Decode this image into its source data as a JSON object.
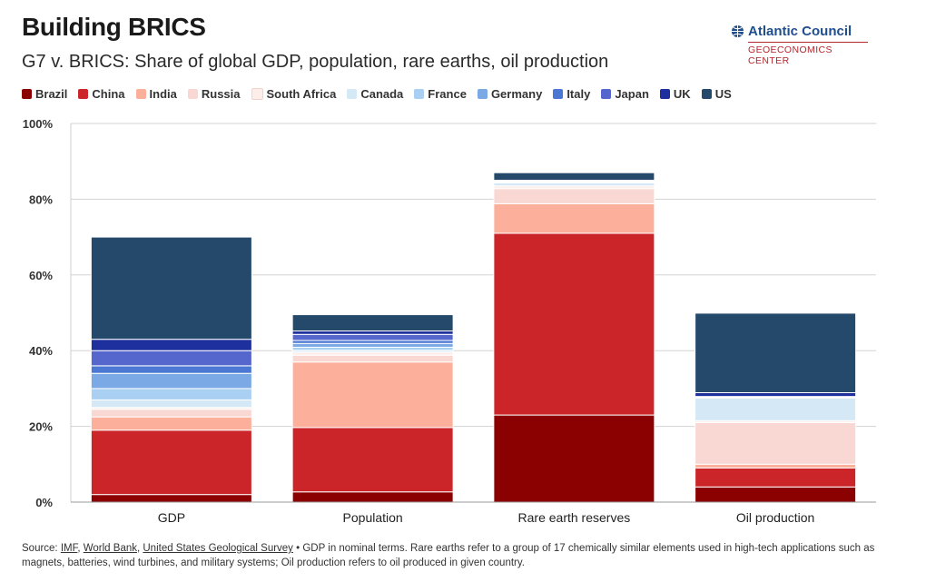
{
  "header": {
    "title": "Building BRICS",
    "subtitle": "G7 v. BRICS: Share of global GDP, population, rare earths, oil production"
  },
  "logo": {
    "name": "Atlantic Council",
    "sub": "GEOECONOMICS CENTER",
    "icon": "globe-icon"
  },
  "source": {
    "prefix": "Source: ",
    "links": [
      "IMF",
      "World Bank",
      "United States Geological Survey"
    ],
    "sep": ", ",
    "bullet": " • ",
    "note": "GDP in nominal terms. Rare earths refer to a group of 17 chemically similar elements used in high-tech applications such as magnets, batteries, wind turbines, and military systems; Oil production refers to oil produced in given country."
  },
  "chart_data": {
    "type": "bar",
    "stacked": true,
    "categories": [
      "GDP",
      "Population",
      "Rare earth reserves",
      "Oil production"
    ],
    "ylim": [
      0,
      100
    ],
    "yticks": [
      0,
      20,
      40,
      60,
      80,
      100
    ],
    "ytick_labels": [
      "0%",
      "20%",
      "40%",
      "60%",
      "80%",
      "100%"
    ],
    "grid": true,
    "legend_position": "top-left",
    "xlabel": "",
    "ylabel": "",
    "series": [
      {
        "name": "Brazil",
        "color": "#8b0000",
        "values": [
          2.0,
          2.7,
          23.0,
          4.0
        ]
      },
      {
        "name": "China",
        "color": "#cc2529",
        "values": [
          17.0,
          17.0,
          48.0,
          5.0
        ]
      },
      {
        "name": "India",
        "color": "#fcaf9b",
        "values": [
          3.5,
          17.3,
          7.8,
          1.0
        ]
      },
      {
        "name": "Russia",
        "color": "#f9d8d3",
        "values": [
          2.0,
          1.8,
          4.0,
          11.0
        ]
      },
      {
        "name": "South Africa",
        "color": "#fdeeea",
        "values": [
          0.5,
          0.8,
          0.7,
          0.5
        ]
      },
      {
        "name": "Canada",
        "color": "#d4e8f6",
        "values": [
          2.0,
          0.5,
          0.8,
          6.0
        ]
      },
      {
        "name": "France",
        "color": "#a9cff3",
        "values": [
          3.0,
          0.8,
          0.2,
          0.1
        ]
      },
      {
        "name": "Germany",
        "color": "#7ba9e6",
        "values": [
          4.0,
          1.0,
          0.1,
          0.1
        ]
      },
      {
        "name": "Italy",
        "color": "#4b78d2",
        "values": [
          2.0,
          0.8,
          0.1,
          0.1
        ]
      },
      {
        "name": "Japan",
        "color": "#5566cc",
        "values": [
          4.0,
          1.6,
          0.1,
          0.1
        ]
      },
      {
        "name": "UK",
        "color": "#1e2f9e",
        "values": [
          3.0,
          0.9,
          0.2,
          1.0
        ]
      },
      {
        "name": "US",
        "color": "#24496b",
        "values": [
          27.0,
          4.3,
          2.0,
          21.0
        ]
      }
    ]
  }
}
